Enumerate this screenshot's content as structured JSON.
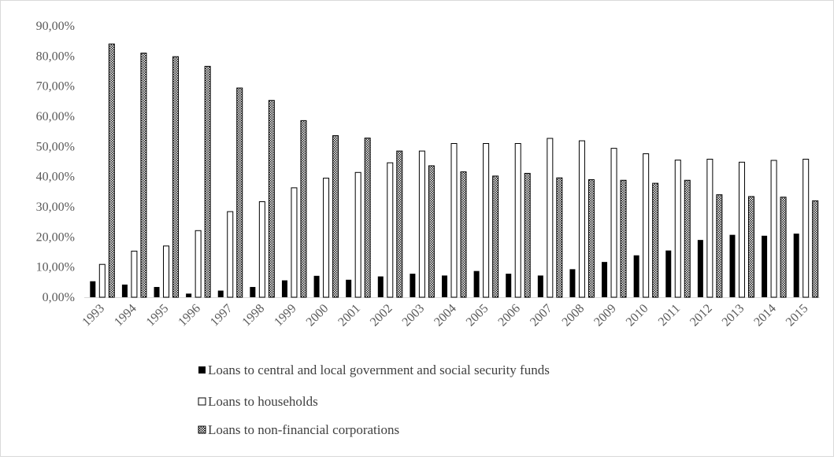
{
  "chart_data": {
    "type": "bar",
    "categories": [
      "1993",
      "1994",
      "1995",
      "1996",
      "1997",
      "1998",
      "1999",
      "2000",
      "2001",
      "2002",
      "2003",
      "2004",
      "2005",
      "2006",
      "2007",
      "2008",
      "2009",
      "2010",
      "2011",
      "2012",
      "2013",
      "2014",
      "2015"
    ],
    "series": [
      {
        "name": "Loans to central and local government and social security funds",
        "values": [
          5.3,
          4.2,
          3.4,
          1.2,
          2.2,
          3.4,
          5.6,
          7.1,
          5.8,
          6.9,
          7.8,
          7.2,
          8.7,
          7.8,
          7.2,
          9.3,
          11.7,
          13.9,
          15.5,
          19.0,
          20.7,
          20.4,
          21.1
        ],
        "color": "#000000",
        "pattern": "solid"
      },
      {
        "name": "Loans to households",
        "values": [
          10.9,
          15.3,
          17.0,
          22.1,
          28.4,
          31.7,
          36.3,
          39.5,
          41.4,
          44.6,
          48.5,
          51.0,
          51.0,
          51.0,
          52.7,
          51.9,
          49.4,
          47.6,
          45.5,
          45.8,
          44.8,
          45.4,
          45.8
        ],
        "color": "#ffffff",
        "pattern": "hollow"
      },
      {
        "name": "Loans to non-financial corporations",
        "values": [
          84.0,
          81.0,
          79.8,
          76.6,
          69.4,
          65.3,
          58.6,
          53.6,
          52.8,
          48.5,
          43.6,
          41.6,
          40.2,
          41.1,
          39.6,
          39.0,
          38.8,
          37.8,
          38.8,
          34.0,
          33.4,
          33.2,
          32.0
        ],
        "color": "#8c8c8c",
        "pattern": "checkered"
      }
    ],
    "y_ticks": [
      "0,00%",
      "10,00%",
      "20,00%",
      "30,00%",
      "40,00%",
      "50,00%",
      "60,00%",
      "70,00%",
      "80,00%",
      "90,00%"
    ],
    "ylim": [
      0,
      90
    ],
    "title": "",
    "xlabel": "",
    "ylabel": "",
    "grid": false,
    "legend_position": "bottom"
  }
}
